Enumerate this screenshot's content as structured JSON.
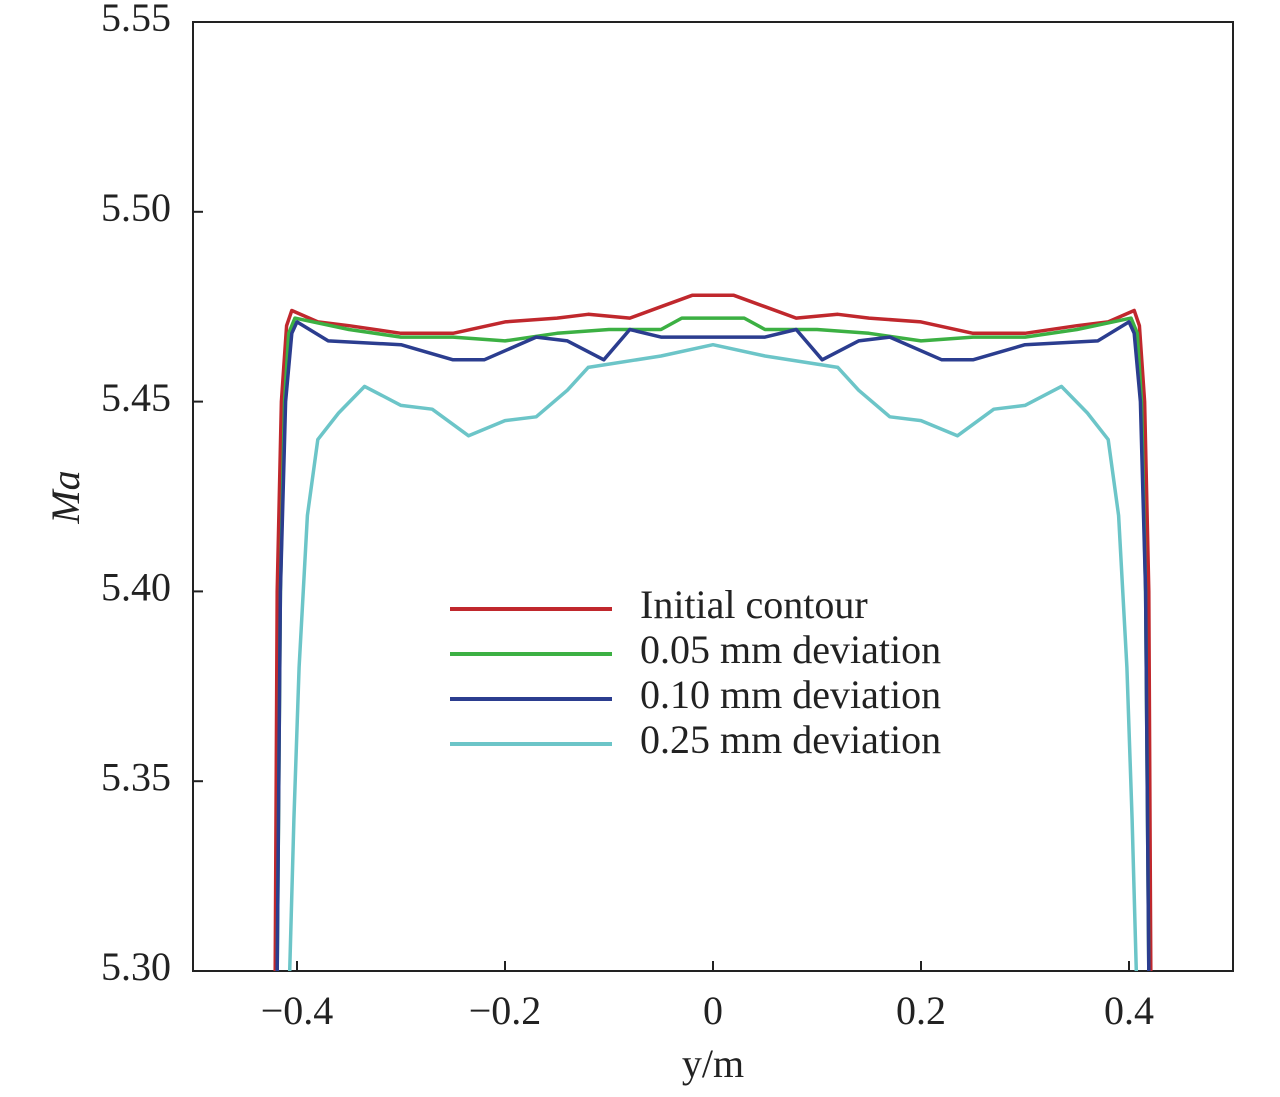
{
  "chart_data": {
    "type": "line",
    "xlabel": "y/m",
    "ylabel": "Ma",
    "xlim": [
      -0.5,
      0.5
    ],
    "ylim": [
      5.3,
      5.55
    ],
    "xticks": [
      {
        "value": -0.4,
        "label": "−0.4"
      },
      {
        "value": -0.2,
        "label": "−0.2"
      },
      0,
      0.2,
      0.4
    ],
    "yticks": [
      {
        "value": 5.3,
        "label": "5.30"
      },
      5.35,
      {
        "value": 5.4,
        "label": "5.40"
      },
      5.45,
      {
        "value": 5.5,
        "label": "5.50"
      },
      5.55
    ],
    "series": [
      {
        "name": "Initial contour",
        "color": "#c0282d",
        "x": [
          -0.421,
          -0.419,
          -0.415,
          -0.41,
          -0.405,
          -0.38,
          -0.35,
          -0.3,
          -0.25,
          -0.2,
          -0.15,
          -0.12,
          -0.08,
          -0.05,
          -0.02,
          0,
          0.02,
          0.05,
          0.08,
          0.12,
          0.15,
          0.2,
          0.25,
          0.3,
          0.35,
          0.38,
          0.405,
          0.41,
          0.415,
          0.419,
          0.421
        ],
        "values": [
          5.3,
          5.4,
          5.45,
          5.47,
          5.474,
          5.471,
          5.47,
          5.468,
          5.468,
          5.471,
          5.472,
          5.473,
          5.472,
          5.475,
          5.478,
          5.478,
          5.478,
          5.475,
          5.472,
          5.473,
          5.472,
          5.471,
          5.468,
          5.468,
          5.47,
          5.471,
          5.474,
          5.47,
          5.45,
          5.4,
          5.3
        ]
      },
      {
        "name": "0.05 mm deviation",
        "color": "#3cb043",
        "x": [
          -0.419,
          -0.416,
          -0.412,
          -0.408,
          -0.402,
          -0.35,
          -0.3,
          -0.25,
          -0.2,
          -0.15,
          -0.1,
          -0.05,
          -0.03,
          0,
          0.03,
          0.05,
          0.1,
          0.15,
          0.2,
          0.25,
          0.3,
          0.35,
          0.402,
          0.408,
          0.412,
          0.416,
          0.419
        ],
        "values": [
          5.3,
          5.4,
          5.45,
          5.468,
          5.472,
          5.469,
          5.467,
          5.467,
          5.466,
          5.468,
          5.469,
          5.469,
          5.472,
          5.472,
          5.472,
          5.469,
          5.469,
          5.468,
          5.466,
          5.467,
          5.467,
          5.469,
          5.472,
          5.468,
          5.45,
          5.4,
          5.3
        ]
      },
      {
        "name": "0.10 mm deviation",
        "color": "#2b3d8f",
        "x": [
          -0.419,
          -0.416,
          -0.411,
          -0.405,
          -0.4,
          -0.37,
          -0.3,
          -0.25,
          -0.22,
          -0.17,
          -0.14,
          -0.105,
          -0.08,
          -0.05,
          0,
          0.05,
          0.08,
          0.105,
          0.14,
          0.17,
          0.22,
          0.25,
          0.3,
          0.37,
          0.4,
          0.405,
          0.411,
          0.416,
          0.419
        ],
        "values": [
          5.3,
          5.4,
          5.45,
          5.468,
          5.471,
          5.466,
          5.465,
          5.461,
          5.461,
          5.467,
          5.466,
          5.461,
          5.469,
          5.467,
          5.467,
          5.467,
          5.469,
          5.461,
          5.466,
          5.467,
          5.461,
          5.461,
          5.465,
          5.466,
          5.471,
          5.468,
          5.45,
          5.4,
          5.3
        ]
      },
      {
        "name": "0.25 mm deviation",
        "color": "#6cc5c8",
        "x": [
          -0.407,
          -0.403,
          -0.398,
          -0.39,
          -0.38,
          -0.36,
          -0.335,
          -0.3,
          -0.27,
          -0.235,
          -0.2,
          -0.17,
          -0.14,
          -0.12,
          -0.05,
          0,
          0.05,
          0.12,
          0.14,
          0.17,
          0.2,
          0.235,
          0.27,
          0.3,
          0.335,
          0.36,
          0.38,
          0.39,
          0.398,
          0.403,
          0.407
        ],
        "values": [
          5.3,
          5.34,
          5.38,
          5.42,
          5.44,
          5.447,
          5.454,
          5.449,
          5.448,
          5.441,
          5.445,
          5.446,
          5.453,
          5.459,
          5.462,
          5.465,
          5.462,
          5.459,
          5.453,
          5.446,
          5.445,
          5.441,
          5.448,
          5.449,
          5.454,
          5.447,
          5.44,
          5.42,
          5.38,
          5.34,
          5.3
        ]
      }
    ]
  }
}
